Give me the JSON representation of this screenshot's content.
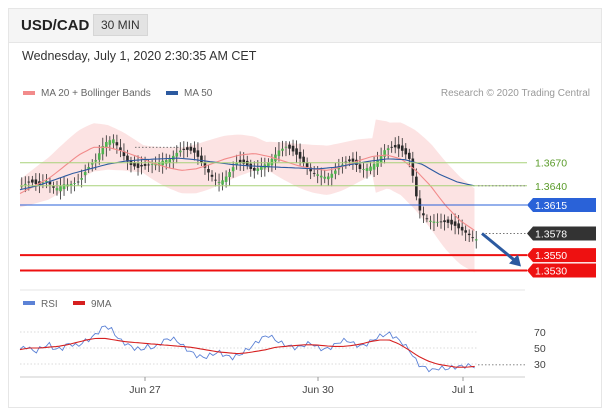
{
  "header": {
    "symbol": "USD/CAD",
    "timeframe": "30 MIN"
  },
  "timestamp": "Wednesday, July 1, 2020 2:30:35 AM CET",
  "legend": {
    "ma20_label": "MA 20 + Bollinger Bands",
    "ma50_label": "MA 50",
    "credit": "Research © 2020 Trading Central",
    "rsi_label": "RSI",
    "rsi_ma_label": "9MA"
  },
  "colors": {
    "ma20": "#f28b8b",
    "ma50": "#2c5aa0",
    "band": "#fcdede",
    "green_level": "#a8d27a",
    "blue_level": "#2a62d8",
    "red_level": "#ee1111",
    "current": "#333333",
    "arrow": "#2c5aa0",
    "rsi": "#5c82d6",
    "rsi_ma": "#d62020"
  },
  "chart_data": [
    {
      "type": "candlestick",
      "x_ticks": [
        "Jun 27",
        "Jun 30",
        "Jul 1"
      ],
      "ylim": [
        1.3515,
        1.3745
      ],
      "levels": [
        {
          "value": "1.3670",
          "price": 1.367,
          "style": "green"
        },
        {
          "value": "1.3640",
          "price": 1.364,
          "style": "green"
        },
        {
          "value": "1.3615",
          "price": 1.3615,
          "style": "blue"
        },
        {
          "value": "1.3578",
          "price": 1.3578,
          "style": "current"
        },
        {
          "value": "1.3550",
          "price": 1.355,
          "style": "red"
        },
        {
          "value": "1.3530",
          "price": 1.353,
          "style": "red"
        }
      ],
      "close_path": [
        1.364,
        1.3638,
        1.3633,
        1.3645,
        1.3642,
        1.365,
        1.3645,
        1.364,
        1.3655,
        1.367,
        1.37,
        1.371,
        1.369,
        1.3665,
        1.3655,
        1.366,
        1.367,
        1.368,
        1.3683,
        1.3685,
        1.368,
        1.3675,
        1.3665,
        1.3658,
        1.3652,
        1.3658,
        1.3665,
        1.366,
        1.3655,
        1.367,
        1.368,
        1.369,
        1.3688,
        1.3675,
        1.3665,
        1.366,
        1.3662,
        1.3658,
        1.366,
        1.3662,
        1.3665,
        1.366,
        1.367,
        1.368,
        1.369,
        1.3685,
        1.3678,
        1.367,
        1.3615,
        1.3605,
        1.3598,
        1.359,
        1.3582,
        1.3578,
        1.3579,
        1.3578
      ],
      "ma20_path": [
        1.363,
        1.364,
        1.365,
        1.3665,
        1.368,
        1.369,
        1.369,
        1.3685,
        1.3678,
        1.367,
        1.3664,
        1.366,
        1.3662,
        1.3668,
        1.3675,
        1.368,
        1.3682,
        1.3678,
        1.3672,
        1.3666,
        1.3662,
        1.366,
        1.3665,
        1.3672,
        1.3678,
        1.368,
        1.3675,
        1.366,
        1.364,
        1.3615,
        1.3595,
        1.3582
      ],
      "ma50_path": [
        1.3635,
        1.364,
        1.3648,
        1.3656,
        1.3662,
        1.3668,
        1.3672,
        1.3674,
        1.3675,
        1.3676,
        1.3674,
        1.3671,
        1.3668,
        1.3666,
        1.3665,
        1.3664,
        1.3663,
        1.3662,
        1.3664,
        1.3668,
        1.3672,
        1.3675,
        1.3674,
        1.3668,
        1.3655,
        1.3645,
        1.364
      ],
      "forecast_target": 1.353
    },
    {
      "type": "line",
      "ylim": [
        20,
        85
      ],
      "y_ticks": [
        "70",
        "50",
        "30"
      ],
      "series": [
        {
          "name": "RSI",
          "values": [
            48,
            52,
            45,
            50,
            55,
            48,
            50,
            56,
            52,
            58,
            62,
            70,
            78,
            72,
            60,
            55,
            50,
            48,
            52,
            50,
            58,
            62,
            60,
            52,
            45,
            40,
            38,
            42,
            45,
            40,
            38,
            42,
            48,
            55,
            62,
            66,
            60,
            55,
            52,
            50,
            54,
            56,
            50,
            48,
            52,
            58,
            60,
            55,
            52,
            56,
            62,
            66,
            68,
            62,
            55,
            45,
            30,
            25,
            22,
            25,
            24,
            26,
            27,
            28,
            27
          ]
        },
        {
          "name": "9MA",
          "values": [
            48,
            50,
            50,
            51,
            52,
            54,
            57,
            60,
            62,
            62,
            60,
            58,
            57,
            56,
            55,
            54,
            53,
            52,
            51,
            49,
            47,
            45,
            44,
            43,
            44,
            46,
            48,
            51,
            52,
            53,
            54,
            54,
            53,
            52,
            52,
            53,
            55,
            58,
            60,
            60,
            55,
            48,
            40,
            34,
            30,
            28,
            26,
            26,
            27
          ]
        }
      ]
    }
  ]
}
